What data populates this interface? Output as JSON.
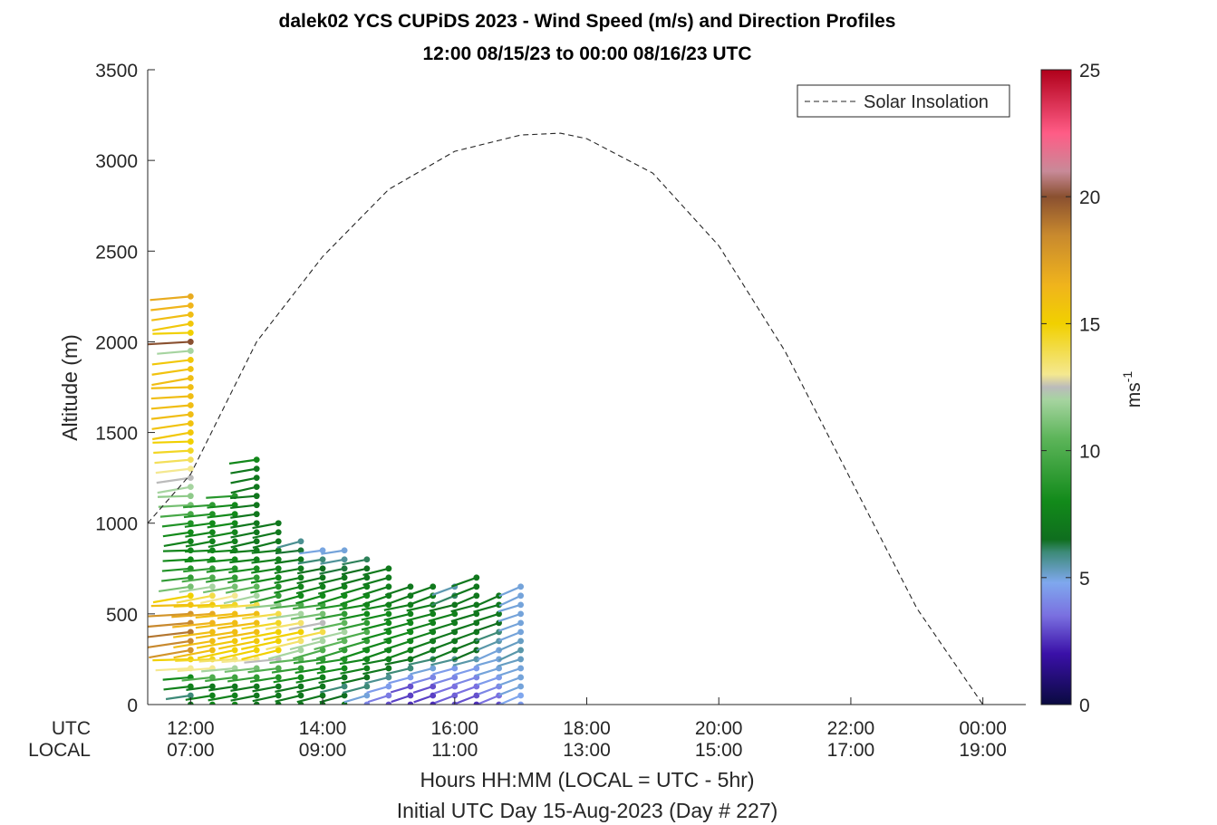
{
  "chart_data": {
    "type": "scatter",
    "title": "dalek02 YCS CUPiDS 2023 - Wind Speed (m/s) and Direction Profiles",
    "subtitle": "12:00 08/15/23 to 00:00 08/16/23  UTC",
    "ylabel": "Altitude (m)",
    "xlabel": "Hours HH:MM  (LOCAL = UTC - 5hr)",
    "xlabel2": "Initial UTC Day 15-Aug-2023 (Day # 227)",
    "xlim": [
      11.35,
      24.65
    ],
    "ylim": [
      0,
      3500
    ],
    "grid": false,
    "y_ticks": [
      "0",
      "500",
      "1000",
      "1500",
      "2000",
      "2500",
      "3000",
      "3500"
    ],
    "x_row_labels": [
      "UTC",
      "LOCAL"
    ],
    "x_ticks_utc": [
      "12:00",
      "14:00",
      "16:00",
      "18:00",
      "20:00",
      "22:00",
      "00:00"
    ],
    "x_ticks_local": [
      "07:00",
      "09:00",
      "11:00",
      "13:00",
      "15:00",
      "17:00",
      "19:00"
    ],
    "legend": {
      "label": "Solar Insolation",
      "position": "top-right",
      "line_style": "dashed"
    },
    "solar_insolation": {
      "x_utc_hours": [
        11.35,
        12.0,
        13.0,
        14.0,
        15.0,
        16.0,
        17.0,
        17.6,
        18.0,
        19.0,
        20.0,
        21.0,
        22.0,
        23.0,
        24.0,
        24.1,
        24.65
      ],
      "altitude_m": [
        1000,
        1270,
        2000,
        2470,
        2840,
        3050,
        3140,
        3150,
        3120,
        2930,
        2530,
        1950,
        1240,
        530,
        0,
        0,
        0
      ]
    },
    "colorbar": {
      "label": "ms-1",
      "range": [
        0,
        25
      ],
      "ticks": [
        "0",
        "5",
        "10",
        "15",
        "20",
        "25"
      ],
      "stops": [
        {
          "v": 0,
          "c": "#0a0a40"
        },
        {
          "v": 2,
          "c": "#3a10a8"
        },
        {
          "v": 3.5,
          "c": "#7a70e0"
        },
        {
          "v": 4.8,
          "c": "#7fa8ee"
        },
        {
          "v": 6,
          "c": "#3d8a78"
        },
        {
          "v": 6.5,
          "c": "#0f6e1e"
        },
        {
          "v": 8,
          "c": "#128a1a"
        },
        {
          "v": 10.5,
          "c": "#5db55a"
        },
        {
          "v": 12,
          "c": "#a6d4a0"
        },
        {
          "v": 12.5,
          "c": "#bbbbbb"
        },
        {
          "v": 13,
          "c": "#f4e890"
        },
        {
          "v": 15,
          "c": "#f1d000"
        },
        {
          "v": 16.5,
          "c": "#f0b41c"
        },
        {
          "v": 18.5,
          "c": "#c8892e"
        },
        {
          "v": 20,
          "c": "#8a5030"
        },
        {
          "v": 21,
          "c": "#c88a98"
        },
        {
          "v": 22.5,
          "c": "#ff5c86"
        },
        {
          "v": 25,
          "c": "#b0001a"
        }
      ]
    },
    "wind_profiles": [
      {
        "t": 12.0,
        "top": 2260,
        "levels": [
          [
            0,
            7
          ],
          [
            50,
            6
          ],
          [
            100,
            7.5
          ],
          [
            150,
            8
          ],
          [
            200,
            13
          ],
          [
            250,
            15
          ],
          [
            300,
            18
          ],
          [
            400,
            19
          ],
          [
            500,
            18
          ],
          [
            550,
            16
          ],
          [
            600,
            15
          ],
          [
            650,
            11
          ],
          [
            700,
            9
          ],
          [
            800,
            8
          ],
          [
            900,
            7.5
          ],
          [
            1000,
            8.5
          ],
          [
            1100,
            11
          ],
          [
            1200,
            12
          ],
          [
            1300,
            13
          ],
          [
            1400,
            14.5
          ],
          [
            1500,
            15.5
          ],
          [
            1600,
            16
          ],
          [
            1700,
            16
          ],
          [
            1800,
            16
          ],
          [
            1900,
            15.5
          ],
          [
            1950,
            12
          ],
          [
            2000,
            20
          ],
          [
            2050,
            15
          ],
          [
            2150,
            16
          ],
          [
            2260,
            17
          ]
        ]
      },
      {
        "t": 12.33,
        "top": 1100,
        "levels": [
          [
            0,
            8
          ],
          [
            100,
            7
          ],
          [
            200,
            13
          ],
          [
            300,
            16
          ],
          [
            400,
            16
          ],
          [
            500,
            17
          ],
          [
            600,
            14
          ],
          [
            700,
            10
          ],
          [
            800,
            8
          ],
          [
            900,
            7.5
          ],
          [
            1000,
            8
          ],
          [
            1100,
            9
          ]
        ]
      },
      {
        "t": 12.67,
        "top": 1170,
        "levels": [
          [
            0,
            8
          ],
          [
            100,
            7
          ],
          [
            200,
            12
          ],
          [
            300,
            15
          ],
          [
            400,
            16
          ],
          [
            500,
            16
          ],
          [
            600,
            13
          ],
          [
            700,
            9
          ],
          [
            800,
            8
          ],
          [
            900,
            7.5
          ],
          [
            1000,
            8
          ],
          [
            1100,
            8
          ],
          [
            1170,
            9
          ]
        ]
      },
      {
        "t": 13.0,
        "top": 1360,
        "levels": [
          [
            0,
            7
          ],
          [
            100,
            7
          ],
          [
            200,
            11
          ],
          [
            300,
            15
          ],
          [
            400,
            16
          ],
          [
            500,
            16
          ],
          [
            600,
            12
          ],
          [
            700,
            9
          ],
          [
            800,
            7.5
          ],
          [
            900,
            7
          ],
          [
            1000,
            7
          ],
          [
            1100,
            7
          ],
          [
            1200,
            7
          ],
          [
            1300,
            7
          ],
          [
            1360,
            8
          ]
        ]
      },
      {
        "t": 13.33,
        "top": 1020,
        "levels": [
          [
            0,
            7
          ],
          [
            100,
            7
          ],
          [
            200,
            10
          ],
          [
            300,
            15
          ],
          [
            400,
            15
          ],
          [
            500,
            14
          ],
          [
            600,
            9
          ],
          [
            700,
            8
          ],
          [
            800,
            7.5
          ],
          [
            900,
            7
          ],
          [
            1020,
            7
          ]
        ]
      },
      {
        "t": 13.67,
        "top": 920,
        "levels": [
          [
            0,
            7
          ],
          [
            100,
            7
          ],
          [
            200,
            9
          ],
          [
            300,
            12
          ],
          [
            400,
            15
          ],
          [
            500,
            12
          ],
          [
            600,
            8
          ],
          [
            700,
            7.5
          ],
          [
            800,
            7
          ],
          [
            920,
            5.5
          ]
        ]
      },
      {
        "t": 14.0,
        "top": 870,
        "levels": [
          [
            0,
            7
          ],
          [
            100,
            7
          ],
          [
            200,
            8
          ],
          [
            300,
            10
          ],
          [
            400,
            14
          ],
          [
            500,
            11
          ],
          [
            600,
            8
          ],
          [
            700,
            7
          ],
          [
            800,
            6
          ],
          [
            870,
            4.5
          ]
        ]
      },
      {
        "t": 14.33,
        "top": 850,
        "levels": [
          [
            0,
            7
          ],
          [
            100,
            6
          ],
          [
            200,
            8
          ],
          [
            300,
            9
          ],
          [
            400,
            12
          ],
          [
            500,
            9
          ],
          [
            600,
            8
          ],
          [
            700,
            7
          ],
          [
            850,
            5
          ]
        ]
      },
      {
        "t": 14.67,
        "top": 820,
        "levels": [
          [
            0,
            4
          ],
          [
            100,
            6
          ],
          [
            200,
            7.5
          ],
          [
            300,
            8
          ],
          [
            400,
            10
          ],
          [
            500,
            8
          ],
          [
            600,
            8
          ],
          [
            700,
            7
          ],
          [
            820,
            6
          ]
        ]
      },
      {
        "t": 15.0,
        "top": 780,
        "levels": [
          [
            0,
            3
          ],
          [
            100,
            4.5
          ],
          [
            200,
            7
          ],
          [
            300,
            7.5
          ],
          [
            400,
            8
          ],
          [
            500,
            8
          ],
          [
            600,
            7.5
          ],
          [
            780,
            7
          ]
        ]
      },
      {
        "t": 15.33,
        "top": 650,
        "levels": [
          [
            0,
            2.5
          ],
          [
            100,
            3
          ],
          [
            200,
            6
          ],
          [
            300,
            7.5
          ],
          [
            400,
            8
          ],
          [
            500,
            7.5
          ],
          [
            650,
            7
          ]
        ]
      },
      {
        "t": 15.67,
        "top": 680,
        "levels": [
          [
            0,
            2.5
          ],
          [
            100,
            3
          ],
          [
            200,
            5
          ],
          [
            300,
            7
          ],
          [
            400,
            7.5
          ],
          [
            500,
            7.5
          ],
          [
            680,
            7
          ]
        ]
      },
      {
        "t": 16.0,
        "top": 680,
        "levels": [
          [
            0,
            3
          ],
          [
            100,
            3.5
          ],
          [
            200,
            4.5
          ],
          [
            300,
            7
          ],
          [
            400,
            7
          ],
          [
            500,
            7.5
          ],
          [
            680,
            5
          ]
        ]
      },
      {
        "t": 16.33,
        "top": 700,
        "levels": [
          [
            0,
            2.5
          ],
          [
            100,
            3.5
          ],
          [
            200,
            4.5
          ],
          [
            300,
            6.5
          ],
          [
            400,
            7
          ],
          [
            500,
            7
          ],
          [
            700,
            7
          ]
        ]
      },
      {
        "t": 16.67,
        "top": 620,
        "levels": [
          [
            0,
            3
          ],
          [
            100,
            4
          ],
          [
            200,
            5
          ],
          [
            300,
            5
          ],
          [
            400,
            6
          ],
          [
            500,
            7
          ],
          [
            620,
            7
          ]
        ]
      },
      {
        "t": 17.0,
        "top": 680,
        "levels": [
          [
            0,
            4.5
          ],
          [
            100,
            5
          ],
          [
            200,
            5
          ],
          [
            300,
            5.5
          ],
          [
            400,
            5
          ],
          [
            500,
            5
          ],
          [
            680,
            5
          ]
        ]
      }
    ]
  }
}
